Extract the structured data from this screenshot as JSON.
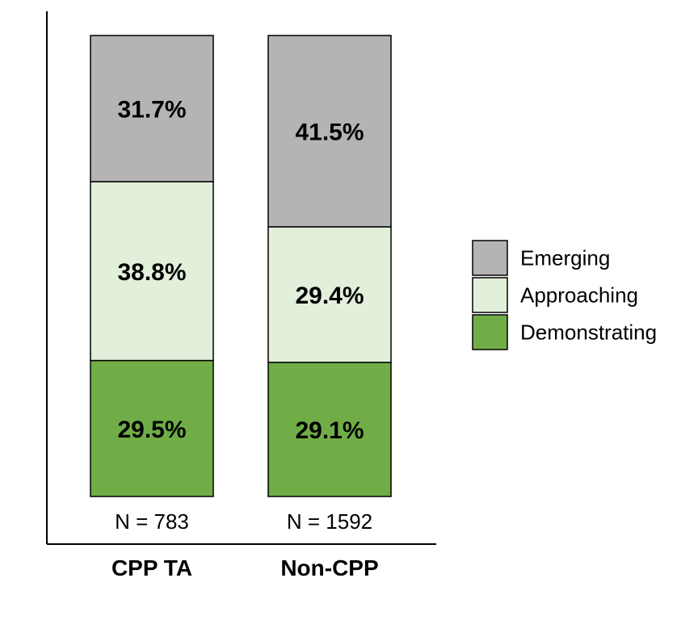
{
  "chart_data": {
    "type": "bar",
    "stacked": true,
    "normalized": true,
    "categories": [
      "CPP TA",
      "Non-CPP"
    ],
    "sample_sizes": [
      "N = 783",
      "N = 1592"
    ],
    "series": [
      {
        "name": "Demonstrating",
        "values": [
          29.5,
          29.1
        ],
        "labels": [
          "29.5%",
          "29.1%"
        ],
        "color": "#70ad47"
      },
      {
        "name": "Approaching",
        "values": [
          38.8,
          29.4
        ],
        "labels": [
          "38.8%",
          "29.4%"
        ],
        "color": "#e2efda"
      },
      {
        "name": "Emerging",
        "values": [
          31.7,
          41.5
        ],
        "labels": [
          "31.7%",
          "41.5%"
        ],
        "color": "#b4b4b4"
      }
    ],
    "legend_order": [
      "Emerging",
      "Approaching",
      "Demonstrating"
    ],
    "legend_position": "right",
    "ylim": [
      0,
      100
    ],
    "grid": false,
    "title": "",
    "xlabel": "",
    "ylabel": ""
  }
}
